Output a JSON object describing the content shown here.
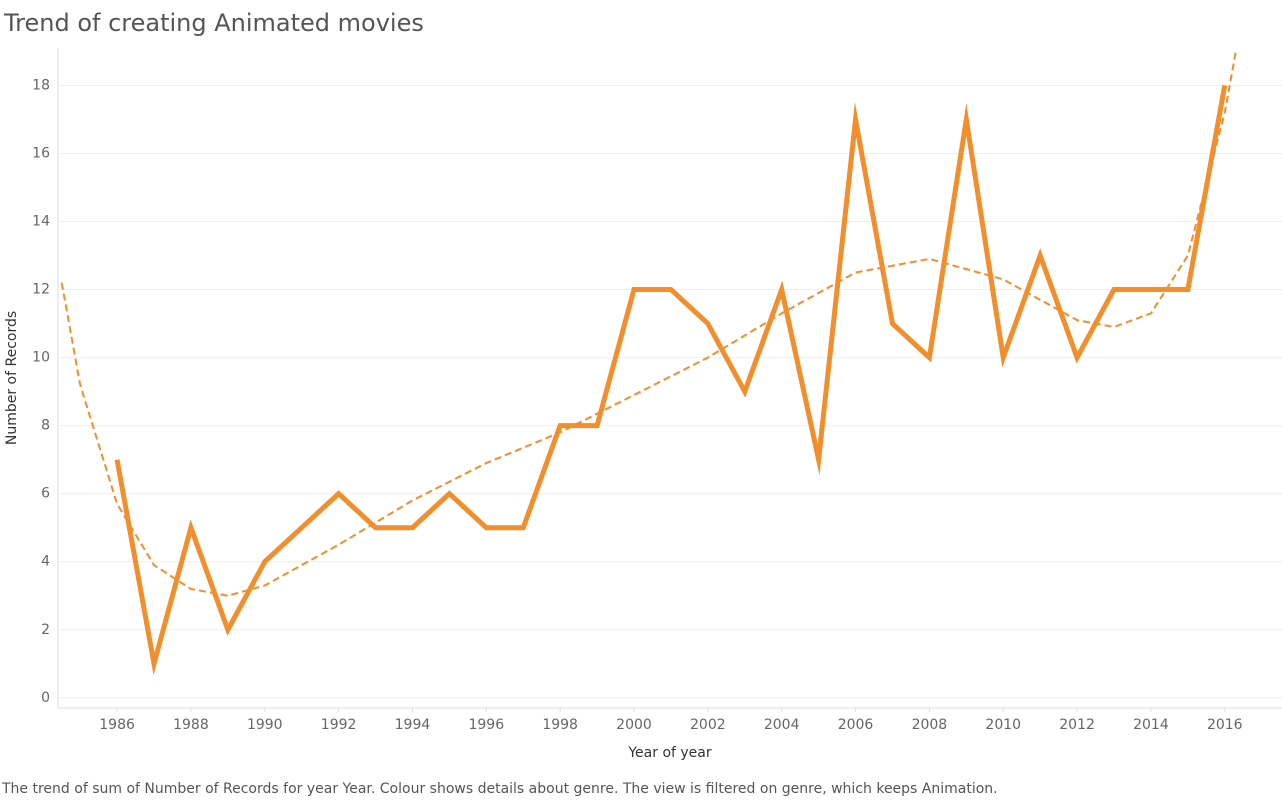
{
  "chart_data": {
    "type": "line",
    "title": "Trend of creating Animated movies",
    "y_label": "Number of Records",
    "x_label": "Year of year",
    "caption": "The trend of sum of Number of Records for year Year.  Colour shows details about genre. The view is filtered on genre, which keeps Animation.",
    "x": [
      1986,
      1987,
      1988,
      1989,
      1990,
      1991,
      1992,
      1993,
      1994,
      1995,
      1996,
      1997,
      1998,
      1999,
      2000,
      2001,
      2002,
      2003,
      2004,
      2005,
      2006,
      2007,
      2008,
      2009,
      2010,
      2011,
      2012,
      2013,
      2014,
      2015,
      2016
    ],
    "values": [
      7,
      1,
      5,
      2,
      4,
      5,
      6,
      5,
      5,
      6,
      5,
      5,
      8,
      8,
      12,
      12,
      11,
      9,
      12,
      7,
      17,
      11,
      10,
      17,
      10,
      13,
      10,
      12,
      12,
      12,
      18
    ],
    "color": "#f28e2b",
    "trend": {
      "x": [
        1984.5,
        1985,
        1986,
        1987,
        1988,
        1989,
        1990,
        1992,
        1994,
        1996,
        1998,
        2000,
        2002,
        2004,
        2006,
        2008,
        2010,
        2012,
        2013,
        2014,
        2015,
        2016,
        2016.3
      ],
      "values": [
        12.2,
        9.2,
        5.7,
        3.9,
        3.2,
        3.0,
        3.3,
        4.5,
        5.8,
        6.9,
        7.8,
        8.9,
        10.0,
        11.3,
        12.5,
        12.9,
        12.3,
        11.1,
        10.9,
        11.3,
        13.0,
        17.2,
        19.0
      ],
      "color": "#f28e2b",
      "dashed": true
    },
    "xlim": [
      1984.4,
      2017.55
    ],
    "ylim": [
      -0.3,
      19.1
    ],
    "xticks": [
      1986,
      1988,
      1990,
      1992,
      1994,
      1996,
      1998,
      2000,
      2002,
      2004,
      2006,
      2008,
      2010,
      2012,
      2014,
      2016
    ],
    "yticks": [
      0,
      2,
      4,
      6,
      8,
      10,
      12,
      14,
      16,
      18
    ],
    "grid": true
  }
}
